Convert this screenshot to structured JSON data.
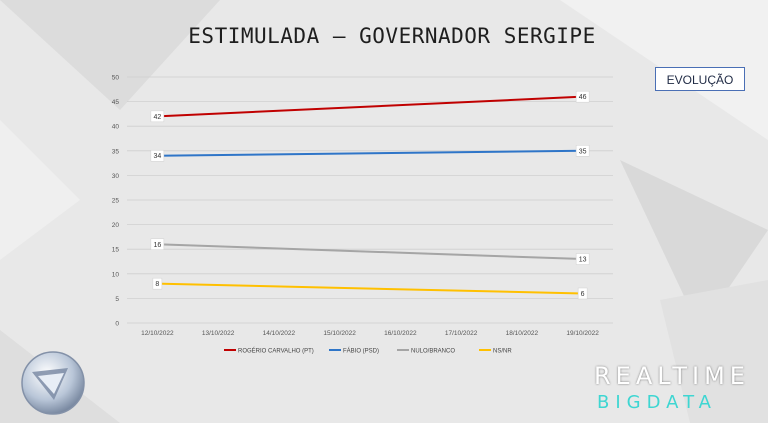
{
  "title": "ESTIMULADA – GOVERNADOR SERGIPE",
  "badge": "EVOLUÇÃO",
  "brand": {
    "line1": "REALTIME",
    "line2": "BIGDATA"
  },
  "chart_data": {
    "type": "line",
    "x": [
      "12/10/2022",
      "13/10/2022",
      "14/10/2022",
      "15/10/2022",
      "16/10/2022",
      "17/10/2022",
      "18/10/2022",
      "19/10/2022"
    ],
    "ylim": [
      0,
      50
    ],
    "yticks": [
      0,
      5,
      10,
      15,
      20,
      25,
      30,
      35,
      40,
      45,
      50
    ],
    "grid": true,
    "legend": "bottom",
    "series": [
      {
        "name": "ROGÉRIO CARVALHO (PT)",
        "color": "#c00000",
        "points": [
          [
            "12/10/2022",
            42
          ],
          [
            "19/10/2022",
            46
          ]
        ]
      },
      {
        "name": "FÁBIO (PSD)",
        "color": "#2e75c8",
        "points": [
          [
            "12/10/2022",
            34
          ],
          [
            "19/10/2022",
            35
          ]
        ]
      },
      {
        "name": "NULO/BRANCO",
        "color": "#a5a5a5",
        "points": [
          [
            "12/10/2022",
            16
          ],
          [
            "19/10/2022",
            13
          ]
        ]
      },
      {
        "name": "NS/NR",
        "color": "#ffc000",
        "points": [
          [
            "12/10/2022",
            8
          ],
          [
            "19/10/2022",
            6
          ]
        ]
      }
    ]
  }
}
